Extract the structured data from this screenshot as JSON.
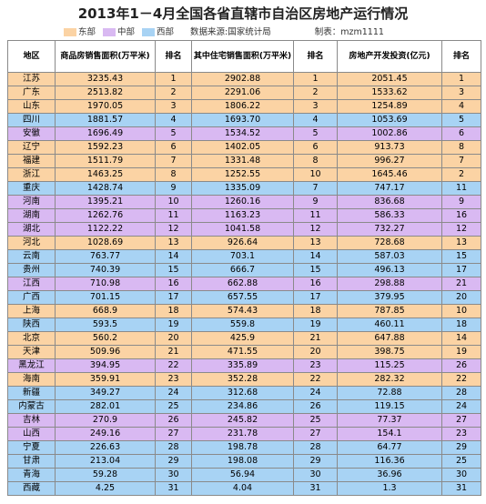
{
  "header": {
    "title": "2013年1－4月全国各省直辖市自治区房地产运行情况",
    "legend": [
      {
        "label": "东部",
        "color": "#fbd3a4"
      },
      {
        "label": "中部",
        "color": "#d9b9f2"
      },
      {
        "label": "西部",
        "color": "#a8d3f4"
      }
    ],
    "source": "数据来源:国家统计局",
    "author": "制表：mzm1111"
  },
  "table": {
    "columns": [
      "地区",
      "商品房销售面积(万平米)",
      "排名",
      "其中住宅销售面积(万平米)",
      "排名",
      "房地产开发投资(亿元)",
      "排名"
    ],
    "rows": [
      {
        "color": "#fbd3a4",
        "cells": [
          "江苏",
          "3235.43",
          "1",
          "2902.88",
          "1",
          "2051.45",
          "1"
        ]
      },
      {
        "color": "#fbd3a4",
        "cells": [
          "广东",
          "2513.82",
          "2",
          "2291.06",
          "2",
          "1533.62",
          "3"
        ]
      },
      {
        "color": "#fbd3a4",
        "cells": [
          "山东",
          "1970.05",
          "3",
          "1806.22",
          "3",
          "1254.89",
          "4"
        ]
      },
      {
        "color": "#a8d3f4",
        "cells": [
          "四川",
          "1881.57",
          "4",
          "1693.70",
          "4",
          "1053.69",
          "5"
        ]
      },
      {
        "color": "#d9b9f2",
        "cells": [
          "安徽",
          "1696.49",
          "5",
          "1534.52",
          "5",
          "1002.86",
          "6"
        ]
      },
      {
        "color": "#fbd3a4",
        "cells": [
          "辽宁",
          "1592.23",
          "6",
          "1402.05",
          "6",
          "913.73",
          "8"
        ]
      },
      {
        "color": "#fbd3a4",
        "cells": [
          "福建",
          "1511.79",
          "7",
          "1331.48",
          "8",
          "996.27",
          "7"
        ]
      },
      {
        "color": "#fbd3a4",
        "cells": [
          "浙江",
          "1463.25",
          "8",
          "1252.55",
          "10",
          "1645.46",
          "2"
        ]
      },
      {
        "color": "#a8d3f4",
        "cells": [
          "重庆",
          "1428.74",
          "9",
          "1335.09",
          "7",
          "747.17",
          "11"
        ]
      },
      {
        "color": "#d9b9f2",
        "cells": [
          "河南",
          "1395.21",
          "10",
          "1260.16",
          "9",
          "836.68",
          "9"
        ]
      },
      {
        "color": "#d9b9f2",
        "cells": [
          "湖南",
          "1262.76",
          "11",
          "1163.23",
          "11",
          "586.33",
          "16"
        ]
      },
      {
        "color": "#d9b9f2",
        "cells": [
          "湖北",
          "1122.22",
          "12",
          "1041.58",
          "12",
          "732.27",
          "12"
        ]
      },
      {
        "color": "#fbd3a4",
        "cells": [
          "河北",
          "1028.69",
          "13",
          "926.64",
          "13",
          "728.68",
          "13"
        ]
      },
      {
        "color": "#a8d3f4",
        "cells": [
          "云南",
          "763.77",
          "14",
          "703.1",
          "14",
          "587.03",
          "15"
        ]
      },
      {
        "color": "#a8d3f4",
        "cells": [
          "贵州",
          "740.39",
          "15",
          "666.7",
          "15",
          "496.13",
          "17"
        ]
      },
      {
        "color": "#d9b9f2",
        "cells": [
          "江西",
          "710.98",
          "16",
          "662.88",
          "16",
          "298.88",
          "21"
        ]
      },
      {
        "color": "#a8d3f4",
        "cells": [
          "广西",
          "701.15",
          "17",
          "657.55",
          "17",
          "379.95",
          "20"
        ]
      },
      {
        "color": "#fbd3a4",
        "cells": [
          "上海",
          "668.9",
          "18",
          "574.43",
          "18",
          "787.85",
          "10"
        ]
      },
      {
        "color": "#a8d3f4",
        "cells": [
          "陕西",
          "593.5",
          "19",
          "559.8",
          "19",
          "460.11",
          "18"
        ]
      },
      {
        "color": "#fbd3a4",
        "cells": [
          "北京",
          "560.2",
          "20",
          "425.9",
          "21",
          "647.88",
          "14"
        ]
      },
      {
        "color": "#fbd3a4",
        "cells": [
          "天津",
          "509.96",
          "21",
          "471.55",
          "20",
          "398.75",
          "19"
        ]
      },
      {
        "color": "#d9b9f2",
        "cells": [
          "黑龙江",
          "394.95",
          "22",
          "335.89",
          "23",
          "115.25",
          "26"
        ]
      },
      {
        "color": "#fbd3a4",
        "cells": [
          "海南",
          "359.91",
          "23",
          "352.28",
          "22",
          "282.32",
          "22"
        ]
      },
      {
        "color": "#a8d3f4",
        "cells": [
          "新疆",
          "349.27",
          "24",
          "312.68",
          "24",
          "72.88",
          "28"
        ]
      },
      {
        "color": "#a8d3f4",
        "cells": [
          "内蒙古",
          "282.01",
          "25",
          "234.86",
          "26",
          "119.15",
          "24"
        ]
      },
      {
        "color": "#d9b9f2",
        "cells": [
          "吉林",
          "270.9",
          "26",
          "245.82",
          "25",
          "77.37",
          "27"
        ]
      },
      {
        "color": "#d9b9f2",
        "cells": [
          "山西",
          "249.16",
          "27",
          "231.78",
          "27",
          "154.1",
          "23"
        ]
      },
      {
        "color": "#a8d3f4",
        "cells": [
          "宁夏",
          "226.63",
          "28",
          "198.78",
          "28",
          "64.77",
          "29"
        ]
      },
      {
        "color": "#a8d3f4",
        "cells": [
          "甘肃",
          "213.04",
          "29",
          "198.08",
          "29",
          "116.36",
          "25"
        ]
      },
      {
        "color": "#a8d3f4",
        "cells": [
          "青海",
          "59.28",
          "30",
          "56.94",
          "30",
          "36.96",
          "30"
        ]
      },
      {
        "color": "#a8d3f4",
        "cells": [
          "西藏",
          "4.25",
          "31",
          "4.04",
          "31",
          "1.3",
          "31"
        ]
      }
    ]
  }
}
